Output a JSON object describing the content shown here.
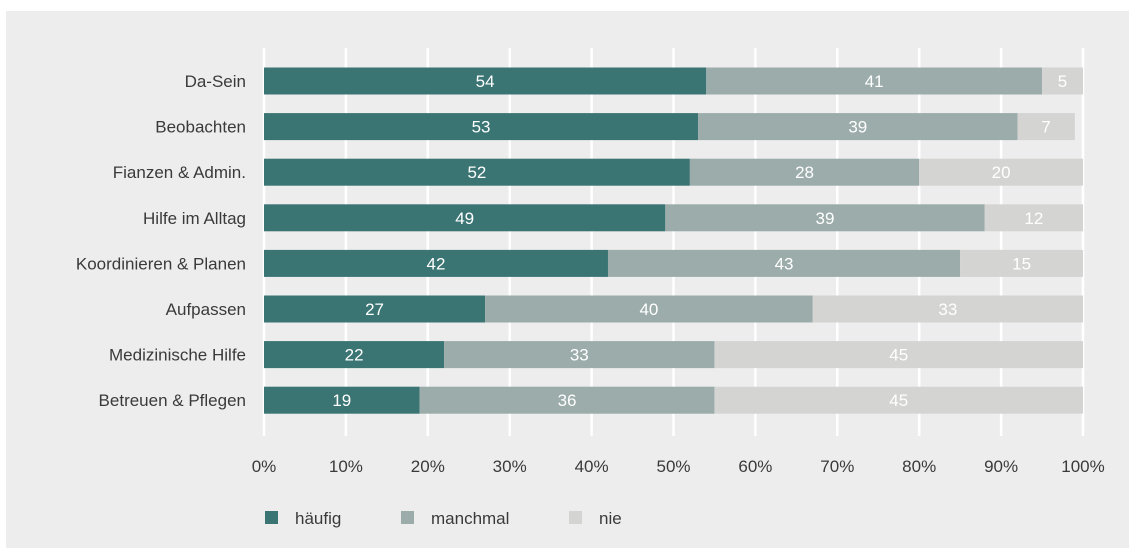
{
  "chart_data": {
    "type": "bar",
    "orientation": "horizontal",
    "stacked": true,
    "categories": [
      "Da-Sein",
      "Beobachten",
      "Fianzen & Admin.",
      "Hilfe im Alltag",
      "Koordinieren & Planen",
      "Aufpassen",
      "Medizinische Hilfe",
      "Betreuen & Pflegen"
    ],
    "series": [
      {
        "name": "häufig",
        "color": "#3a7473",
        "values": [
          54,
          53,
          52,
          49,
          42,
          27,
          22,
          19
        ]
      },
      {
        "name": "manchmal",
        "color": "#9cacab",
        "values": [
          41,
          39,
          28,
          39,
          43,
          40,
          33,
          36
        ]
      },
      {
        "name": "nie",
        "color": "#d4d4d3",
        "values": [
          5,
          7,
          20,
          12,
          15,
          33,
          45,
          45
        ]
      }
    ],
    "xlim": [
      0,
      100
    ],
    "xticks": [
      "0%",
      "10%",
      "20%",
      "30%",
      "40%",
      "50%",
      "60%",
      "70%",
      "80%",
      "90%",
      "100%"
    ],
    "grid": true,
    "legend_position": "bottom-left",
    "title": "",
    "xlabel": "",
    "ylabel": ""
  }
}
